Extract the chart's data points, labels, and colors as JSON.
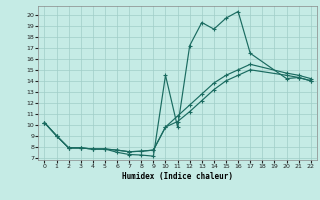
{
  "xlabel": "Humidex (Indice chaleur)",
  "bg_color": "#c5ebe5",
  "grid_color": "#a0cec8",
  "line_color": "#1a6b60",
  "xlim": [
    -0.5,
    22.5
  ],
  "ylim": [
    6.8,
    20.8
  ],
  "xticks": [
    0,
    1,
    2,
    3,
    4,
    5,
    6,
    7,
    8,
    9,
    10,
    11,
    12,
    13,
    14,
    15,
    16,
    17,
    18,
    19,
    20,
    21,
    22
  ],
  "yticks": [
    7,
    8,
    9,
    10,
    11,
    12,
    13,
    14,
    15,
    16,
    17,
    18,
    19,
    20
  ],
  "line1_x": [
    0,
    1,
    2,
    3,
    4,
    5,
    6,
    7,
    8,
    9,
    10,
    11,
    12,
    13,
    14,
    15,
    16,
    17,
    20,
    21,
    22
  ],
  "line1_y": [
    10.2,
    9.0,
    7.9,
    7.9,
    7.8,
    7.8,
    7.5,
    7.3,
    7.25,
    7.15,
    14.5,
    9.8,
    17.2,
    19.3,
    18.7,
    19.7,
    20.3,
    16.5,
    14.2,
    14.3,
    14.0
  ],
  "line2_x": [
    0,
    1,
    2,
    3,
    4,
    5,
    6,
    7,
    8,
    9,
    10,
    11,
    12,
    13,
    14,
    15,
    16,
    17,
    20,
    21,
    22
  ],
  "line2_y": [
    10.2,
    9.0,
    7.9,
    7.9,
    7.8,
    7.8,
    7.7,
    7.55,
    7.6,
    7.7,
    9.8,
    10.3,
    11.2,
    12.2,
    13.2,
    14.0,
    14.5,
    15.0,
    14.5,
    14.3,
    14.0
  ],
  "line3_x": [
    0,
    1,
    2,
    3,
    4,
    5,
    6,
    7,
    8,
    9,
    10,
    11,
    12,
    13,
    14,
    15,
    16,
    17,
    20,
    21,
    22
  ],
  "line3_y": [
    10.2,
    9.0,
    7.9,
    7.9,
    7.8,
    7.8,
    7.7,
    7.55,
    7.6,
    7.7,
    9.8,
    10.8,
    11.8,
    12.8,
    13.8,
    14.5,
    15.0,
    15.5,
    14.7,
    14.5,
    14.2
  ],
  "line4_x": [
    0,
    1,
    22
  ],
  "line4_y": [
    10.2,
    9.0,
    14.0
  ]
}
